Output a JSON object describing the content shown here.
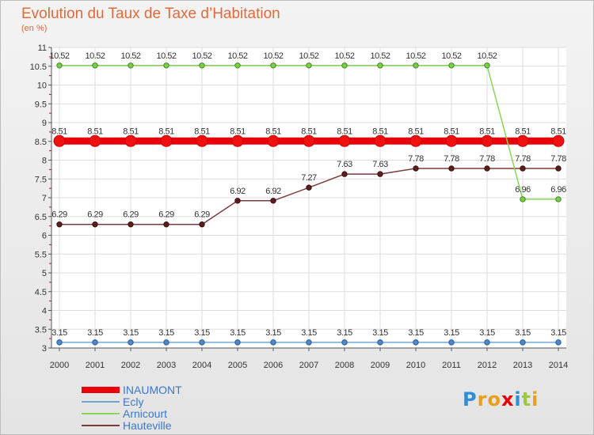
{
  "header": {
    "title": "Evolution du Taux de Taxe d’Habitation",
    "subtitle": "(en %)"
  },
  "chart_data": {
    "type": "line",
    "x": [
      "2000",
      "2001",
      "2002",
      "2003",
      "2004",
      "2005",
      "2006",
      "2007",
      "2008",
      "2009",
      "2010",
      "2011",
      "2012",
      "2013",
      "2014"
    ],
    "ylim": [
      3,
      11
    ],
    "yticks": [
      "3",
      "3.5",
      "4",
      "4.5",
      "5",
      "5.5",
      "6",
      "6.5",
      "7",
      "7.5",
      "8",
      "8.5",
      "9",
      "9.5",
      "10",
      "10.5",
      "11"
    ],
    "grid": true,
    "legend_position": "bottom-left",
    "series": [
      {
        "name": "INAUMONT",
        "color": "#e8000b",
        "values": [
          8.51,
          8.51,
          8.51,
          8.51,
          8.51,
          8.51,
          8.51,
          8.51,
          8.51,
          8.51,
          8.51,
          8.51,
          8.51,
          8.51,
          8.51
        ],
        "labels": [
          "8.51",
          "8.51",
          "8.51",
          "8.51",
          "8.51",
          "8.51",
          "8.51",
          "8.51",
          "8.51",
          "8.51",
          "8.51",
          "8.51",
          "8.51",
          "8.51",
          "8.51"
        ]
      },
      {
        "name": "Ecly",
        "color": "#6fa6d6",
        "values": [
          3.15,
          3.15,
          3.15,
          3.15,
          3.15,
          3.15,
          3.15,
          3.15,
          3.15,
          3.15,
          3.15,
          3.15,
          3.15,
          3.15,
          3.15
        ],
        "labels": [
          "3.15",
          "3.15",
          "3.15",
          "3.15",
          "3.15",
          "3.15",
          "3.15",
          "3.15",
          "3.15",
          "3.15",
          "3.15",
          "3.15",
          "3.15",
          "3.15",
          "3.15"
        ]
      },
      {
        "name": "Arnicourt",
        "color": "#8cd35a",
        "values": [
          10.52,
          10.52,
          10.52,
          10.52,
          10.52,
          10.52,
          10.52,
          10.52,
          10.52,
          10.52,
          10.52,
          10.52,
          10.52,
          6.96,
          6.96
        ],
        "labels": [
          "10.52",
          "10.52",
          "10.52",
          "10.52",
          "10.52",
          "10.52",
          "10.52",
          "10.52",
          "10.52",
          "10.52",
          "10.52",
          "10.52",
          "10.52",
          "6.96",
          "6.96"
        ]
      },
      {
        "name": "Hauteville",
        "color": "#7a3b3b",
        "values": [
          6.29,
          6.29,
          6.29,
          6.29,
          6.29,
          6.92,
          6.92,
          7.27,
          7.63,
          7.63,
          7.78,
          7.78,
          7.78,
          7.78,
          7.78
        ],
        "labels": [
          "6.29",
          "6.29",
          "6.29",
          "6.29",
          "6.29",
          "6.92",
          "6.92",
          "7.27",
          "7.63",
          "7.63",
          "7.78",
          "7.78",
          "7.78",
          "7.78",
          "7.78"
        ]
      }
    ]
  },
  "logo": {
    "text": "Proxiti"
  }
}
